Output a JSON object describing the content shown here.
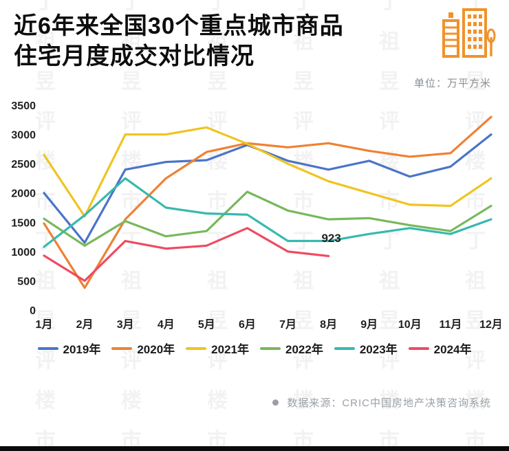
{
  "header": {
    "title_line1": "近6年来全国30个重点城市商品",
    "title_line2": "住宅月度成交对比情况",
    "unit_label": "单位：万平方米"
  },
  "watermark": {
    "text": "丁祖昱评楼市"
  },
  "chart_data": {
    "type": "line",
    "title": "近6年来全国30个重点城市商品住宅月度成交对比情况",
    "ylabel": "万平方米",
    "xlabel": "",
    "ylim": [
      0,
      3500
    ],
    "yticks": [
      0,
      500,
      1000,
      1500,
      2000,
      2500,
      3000,
      3500
    ],
    "grid": false,
    "legend_position": "bottom",
    "categories": [
      "1月",
      "2月",
      "3月",
      "4月",
      "5月",
      "6月",
      "7月",
      "8月",
      "9月",
      "10月",
      "11月",
      "12月"
    ],
    "series": [
      {
        "name": "2019年",
        "color": "#4a74c8",
        "values": [
          2000,
          1150,
          2400,
          2530,
          2560,
          2820,
          2550,
          2400,
          2550,
          2280,
          2450,
          3000
        ]
      },
      {
        "name": "2020年",
        "color": "#ee8133",
        "values": [
          1480,
          380,
          1550,
          2250,
          2700,
          2850,
          2780,
          2850,
          2720,
          2620,
          2680,
          3300
        ]
      },
      {
        "name": "2021年",
        "color": "#f0c41f",
        "values": [
          2650,
          1600,
          3000,
          3000,
          3120,
          2840,
          2500,
          2200,
          2000,
          1800,
          1780,
          2250
        ]
      },
      {
        "name": "2022年",
        "color": "#77b85c",
        "values": [
          1560,
          1100,
          1520,
          1260,
          1350,
          2020,
          1700,
          1550,
          1570,
          1450,
          1350,
          1780
        ]
      },
      {
        "name": "2023年",
        "color": "#38b9ad",
        "values": [
          1080,
          1620,
          2250,
          1750,
          1650,
          1630,
          1180,
          1180,
          1300,
          1400,
          1300,
          1550
        ]
      },
      {
        "name": "2024年",
        "color": "#ef4a62",
        "values": [
          930,
          500,
          1180,
          1050,
          1100,
          1400,
          1000,
          923
        ]
      }
    ],
    "annotation": {
      "text": "923",
      "x_index": 7,
      "value": 1160
    }
  },
  "source": {
    "text": "数据来源：CRIC中国房地产决策咨询系统"
  }
}
